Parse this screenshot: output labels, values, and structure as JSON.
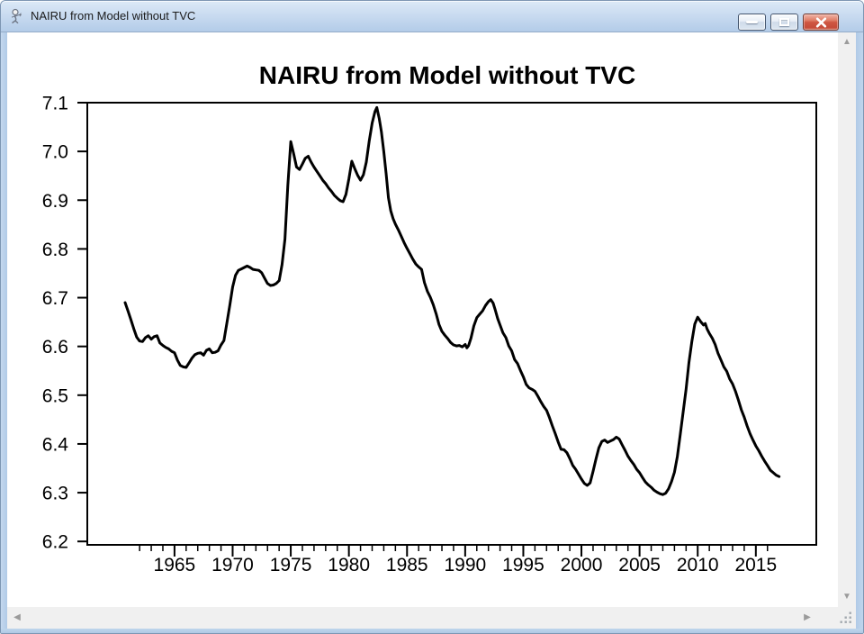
{
  "window": {
    "title": "NAIRU from Model without TVC"
  },
  "icons": {
    "app": "graph-window-icon",
    "minimize": "minimize-dash",
    "maximize": "maximize-square",
    "close": "close-x",
    "scroll_up": "▲",
    "scroll_down": "▼",
    "scroll_left": "◀",
    "scroll_right": "▶",
    "resize_grip": "dot-grid"
  },
  "colors": {
    "titlebar_top": "#dce9f7",
    "titlebar_bottom": "#b2cbe8",
    "frame": "#b7cfe9",
    "frame_edge": "#7d96b3",
    "content_bg": "#ffffff",
    "button_border": "#45566e",
    "close_red": "#cf5743",
    "scroll_track": "#f0f0f0",
    "scroll_arrow": "#9b9b9b",
    "line_color": "#000000"
  },
  "chart_data": {
    "type": "line",
    "title": "NAIRU from Model without TVC",
    "xlabel": "",
    "ylabel": "",
    "grid": false,
    "legend": "none",
    "xlim": [
      1957.5,
      2020.2
    ],
    "ylim": [
      6.193,
      7.1
    ],
    "y_ticks": [
      [
        7.1,
        "7.1"
      ],
      [
        7.0,
        "7.0"
      ],
      [
        6.9,
        "6.9"
      ],
      [
        6.8,
        "6.8"
      ],
      [
        6.7,
        "6.7"
      ],
      [
        6.6,
        "6.6"
      ],
      [
        6.5,
        "6.5"
      ],
      [
        6.4,
        "6.4"
      ],
      [
        6.3,
        "6.3"
      ],
      [
        6.2,
        "6.2"
      ]
    ],
    "x_ticks": [
      [
        1965,
        "1965"
      ],
      [
        1970,
        "1970"
      ],
      [
        1975,
        "1975"
      ],
      [
        1980,
        "1980"
      ],
      [
        1985,
        "1985"
      ],
      [
        1990,
        "1990"
      ],
      [
        1995,
        "1995"
      ],
      [
        2000,
        "2000"
      ],
      [
        2005,
        "2005"
      ],
      [
        2010,
        "2010"
      ],
      [
        2015,
        "2015"
      ]
    ],
    "x_minor_ticks": [
      1962,
      2016
    ],
    "series": [
      {
        "name": "NAIRU",
        "color": "#000000",
        "line_width": 3,
        "points": [
          [
            1960.75,
            6.69
          ],
          [
            1961,
            6.673
          ],
          [
            1961.25,
            6.655
          ],
          [
            1961.5,
            6.636
          ],
          [
            1961.75,
            6.619
          ],
          [
            1962,
            6.611
          ],
          [
            1962.25,
            6.61
          ],
          [
            1962.5,
            6.618
          ],
          [
            1962.75,
            6.622
          ],
          [
            1963,
            6.615
          ],
          [
            1963.25,
            6.62
          ],
          [
            1963.5,
            6.622
          ],
          [
            1963.75,
            6.607
          ],
          [
            1964,
            6.602
          ],
          [
            1964.25,
            6.598
          ],
          [
            1964.5,
            6.595
          ],
          [
            1964.75,
            6.59
          ],
          [
            1965,
            6.587
          ],
          [
            1965.25,
            6.572
          ],
          [
            1965.5,
            6.561
          ],
          [
            1965.75,
            6.558
          ],
          [
            1966,
            6.557
          ],
          [
            1966.25,
            6.566
          ],
          [
            1966.5,
            6.576
          ],
          [
            1966.75,
            6.583
          ],
          [
            1967,
            6.586
          ],
          [
            1967.25,
            6.587
          ],
          [
            1967.5,
            6.582
          ],
          [
            1967.75,
            6.592
          ],
          [
            1968,
            6.595
          ],
          [
            1968.25,
            6.587
          ],
          [
            1968.5,
            6.588
          ],
          [
            1968.75,
            6.591
          ],
          [
            1969,
            6.603
          ],
          [
            1969.25,
            6.612
          ],
          [
            1969.5,
            6.647
          ],
          [
            1969.75,
            6.684
          ],
          [
            1970,
            6.722
          ],
          [
            1970.25,
            6.746
          ],
          [
            1970.5,
            6.756
          ],
          [
            1970.75,
            6.759
          ],
          [
            1971,
            6.762
          ],
          [
            1971.25,
            6.765
          ],
          [
            1971.5,
            6.762
          ],
          [
            1971.75,
            6.758
          ],
          [
            1972,
            6.757
          ],
          [
            1972.25,
            6.756
          ],
          [
            1972.5,
            6.751
          ],
          [
            1972.75,
            6.74
          ],
          [
            1973,
            6.729
          ],
          [
            1973.25,
            6.725
          ],
          [
            1973.5,
            6.726
          ],
          [
            1973.75,
            6.729
          ],
          [
            1974,
            6.735
          ],
          [
            1974.25,
            6.768
          ],
          [
            1974.5,
            6.82
          ],
          [
            1974.75,
            6.93
          ],
          [
            1975,
            7.02
          ],
          [
            1975.25,
            6.995
          ],
          [
            1975.5,
            6.968
          ],
          [
            1975.75,
            6.963
          ],
          [
            1976,
            6.974
          ],
          [
            1976.25,
            6.986
          ],
          [
            1976.5,
            6.99
          ],
          [
            1976.75,
            6.978
          ],
          [
            1977,
            6.968
          ],
          [
            1977.25,
            6.959
          ],
          [
            1977.5,
            6.95
          ],
          [
            1977.75,
            6.941
          ],
          [
            1978,
            6.934
          ],
          [
            1978.25,
            6.925
          ],
          [
            1978.5,
            6.918
          ],
          [
            1978.75,
            6.91
          ],
          [
            1979,
            6.904
          ],
          [
            1979.25,
            6.899
          ],
          [
            1979.5,
            6.897
          ],
          [
            1979.75,
            6.912
          ],
          [
            1980,
            6.944
          ],
          [
            1980.25,
            6.98
          ],
          [
            1980.5,
            6.965
          ],
          [
            1980.75,
            6.951
          ],
          [
            1981,
            6.941
          ],
          [
            1981.25,
            6.952
          ],
          [
            1981.5,
            6.978
          ],
          [
            1981.75,
            7.022
          ],
          [
            1982,
            7.058
          ],
          [
            1982.25,
            7.082
          ],
          [
            1982.4,
            7.09
          ],
          [
            1982.6,
            7.068
          ],
          [
            1982.8,
            7.04
          ],
          [
            1983,
            7.0
          ],
          [
            1983.2,
            6.955
          ],
          [
            1983.4,
            6.905
          ],
          [
            1983.6,
            6.878
          ],
          [
            1983.8,
            6.862
          ],
          [
            1984,
            6.851
          ],
          [
            1984.25,
            6.839
          ],
          [
            1984.5,
            6.826
          ],
          [
            1984.75,
            6.813
          ],
          [
            1985,
            6.801
          ],
          [
            1985.25,
            6.79
          ],
          [
            1985.5,
            6.779
          ],
          [
            1985.75,
            6.769
          ],
          [
            1986,
            6.763
          ],
          [
            1986.25,
            6.758
          ],
          [
            1986.5,
            6.731
          ],
          [
            1986.75,
            6.713
          ],
          [
            1987,
            6.701
          ],
          [
            1987.25,
            6.686
          ],
          [
            1987.5,
            6.667
          ],
          [
            1987.75,
            6.645
          ],
          [
            1988,
            6.631
          ],
          [
            1988.25,
            6.623
          ],
          [
            1988.5,
            6.616
          ],
          [
            1988.75,
            6.608
          ],
          [
            1989,
            6.603
          ],
          [
            1989.25,
            6.601
          ],
          [
            1989.5,
            6.602
          ],
          [
            1989.75,
            6.599
          ],
          [
            1990,
            6.604
          ],
          [
            1990.15,
            6.597
          ],
          [
            1990.3,
            6.602
          ],
          [
            1990.5,
            6.617
          ],
          [
            1990.75,
            6.642
          ],
          [
            1991,
            6.659
          ],
          [
            1991.25,
            6.666
          ],
          [
            1991.5,
            6.673
          ],
          [
            1991.75,
            6.684
          ],
          [
            1992,
            6.692
          ],
          [
            1992.2,
            6.696
          ],
          [
            1992.4,
            6.689
          ],
          [
            1992.6,
            6.674
          ],
          [
            1992.8,
            6.657
          ],
          [
            1993,
            6.644
          ],
          [
            1993.25,
            6.628
          ],
          [
            1993.5,
            6.618
          ],
          [
            1993.75,
            6.601
          ],
          [
            1994,
            6.591
          ],
          [
            1994.25,
            6.573
          ],
          [
            1994.5,
            6.565
          ],
          [
            1994.75,
            6.551
          ],
          [
            1995,
            6.538
          ],
          [
            1995.25,
            6.522
          ],
          [
            1995.5,
            6.515
          ],
          [
            1995.75,
            6.512
          ],
          [
            1996,
            6.508
          ],
          [
            1996.25,
            6.498
          ],
          [
            1996.5,
            6.487
          ],
          [
            1996.75,
            6.477
          ],
          [
            1997,
            6.469
          ],
          [
            1997.25,
            6.454
          ],
          [
            1997.5,
            6.437
          ],
          [
            1997.75,
            6.421
          ],
          [
            1998,
            6.404
          ],
          [
            1998.25,
            6.389
          ],
          [
            1998.5,
            6.388
          ],
          [
            1998.75,
            6.382
          ],
          [
            1999,
            6.37
          ],
          [
            1999.25,
            6.356
          ],
          [
            1999.5,
            6.348
          ],
          [
            1999.75,
            6.338
          ],
          [
            2000,
            6.328
          ],
          [
            2000.25,
            6.319
          ],
          [
            2000.5,
            6.315
          ],
          [
            2000.75,
            6.32
          ],
          [
            2001,
            6.344
          ],
          [
            2001.25,
            6.369
          ],
          [
            2001.5,
            6.392
          ],
          [
            2001.75,
            6.405
          ],
          [
            2002,
            6.408
          ],
          [
            2002.25,
            6.403
          ],
          [
            2002.5,
            6.406
          ],
          [
            2002.75,
            6.409
          ],
          [
            2003,
            6.414
          ],
          [
            2003.25,
            6.41
          ],
          [
            2003.5,
            6.398
          ],
          [
            2003.75,
            6.387
          ],
          [
            2004,
            6.375
          ],
          [
            2004.25,
            6.366
          ],
          [
            2004.5,
            6.358
          ],
          [
            2004.75,
            6.348
          ],
          [
            2005,
            6.341
          ],
          [
            2005.25,
            6.331
          ],
          [
            2005.5,
            6.322
          ],
          [
            2005.75,
            6.316
          ],
          [
            2006,
            6.311
          ],
          [
            2006.25,
            6.305
          ],
          [
            2006.5,
            6.301
          ],
          [
            2006.75,
            6.298
          ],
          [
            2007,
            6.296
          ],
          [
            2007.25,
            6.299
          ],
          [
            2007.5,
            6.308
          ],
          [
            2007.75,
            6.323
          ],
          [
            2008,
            6.342
          ],
          [
            2008.25,
            6.374
          ],
          [
            2008.5,
            6.42
          ],
          [
            2008.75,
            6.466
          ],
          [
            2009,
            6.512
          ],
          [
            2009.25,
            6.567
          ],
          [
            2009.5,
            6.611
          ],
          [
            2009.75,
            6.646
          ],
          [
            2010,
            6.66
          ],
          [
            2010.25,
            6.651
          ],
          [
            2010.5,
            6.644
          ],
          [
            2010.65,
            6.647
          ],
          [
            2010.8,
            6.636
          ],
          [
            2011,
            6.627
          ],
          [
            2011.25,
            6.617
          ],
          [
            2011.5,
            6.604
          ],
          [
            2011.75,
            6.586
          ],
          [
            2012,
            6.572
          ],
          [
            2012.25,
            6.558
          ],
          [
            2012.5,
            6.549
          ],
          [
            2012.75,
            6.533
          ],
          [
            2013,
            6.523
          ],
          [
            2013.25,
            6.508
          ],
          [
            2013.5,
            6.49
          ],
          [
            2013.75,
            6.47
          ],
          [
            2014,
            6.455
          ],
          [
            2014.25,
            6.437
          ],
          [
            2014.5,
            6.421
          ],
          [
            2014.75,
            6.408
          ],
          [
            2015,
            6.396
          ],
          [
            2015.25,
            6.386
          ],
          [
            2015.5,
            6.375
          ],
          [
            2015.75,
            6.365
          ],
          [
            2016,
            6.356
          ],
          [
            2016.25,
            6.346
          ],
          [
            2016.5,
            6.341
          ],
          [
            2016.75,
            6.336
          ],
          [
            2017,
            6.333
          ]
        ]
      }
    ]
  }
}
